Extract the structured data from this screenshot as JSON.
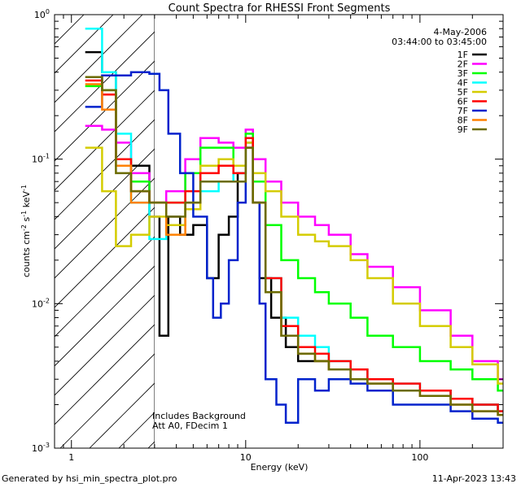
{
  "chart_data": {
    "type": "line",
    "title": "Count Spectra for RHESSI Front Segments",
    "xlabel": "Energy (keV)",
    "ylabel": "counts cm",
    "ylabel_sup1": "-2",
    "ylabel_mid": " s",
    "ylabel_sup2": "-1",
    "ylabel_end": " keV",
    "ylabel_sup3": "-1",
    "xscale": "log",
    "yscale": "log",
    "xlim": [
      0.8,
      300
    ],
    "ylim": [
      0.001,
      1
    ],
    "x_ticks": [
      {
        "value": 1,
        "label": "1"
      },
      {
        "value": 10,
        "label": "10"
      },
      {
        "value": 100,
        "label": "100"
      }
    ],
    "y_ticks": [
      {
        "value": 1,
        "label": "10",
        "sup": "0"
      },
      {
        "value": 0.1,
        "label": "10",
        "sup": "-1"
      },
      {
        "value": 0.01,
        "label": "10",
        "sup": "-2"
      },
      {
        "value": 0.001,
        "label": "10",
        "sup": "-3"
      }
    ],
    "date": "4-May-2006",
    "time_range": "03:44:00 to 03:45:00",
    "annotation_line1": "Includes Background",
    "annotation_line2": "Att A0, FDecim 1",
    "hatch_region": [
      0.8,
      3
    ],
    "legend_position": "top-right",
    "series": [
      {
        "name": "1F",
        "color": "#000000",
        "points": [
          [
            1.2,
            0.55
          ],
          [
            1.5,
            0.4
          ],
          [
            1.8,
            0.1
          ],
          [
            2.2,
            0.09
          ],
          [
            2.8,
            0.04
          ],
          [
            3.2,
            0.006
          ],
          [
            3.6,
            0.04
          ],
          [
            4.2,
            0.03
          ],
          [
            5,
            0.035
          ],
          [
            6,
            0.015
          ],
          [
            7,
            0.03
          ],
          [
            8,
            0.04
          ],
          [
            9,
            0.08
          ],
          [
            10,
            0.13
          ],
          [
            11,
            0.05
          ],
          [
            12,
            0.015
          ],
          [
            14,
            0.008
          ],
          [
            17,
            0.005
          ],
          [
            20,
            0.004
          ],
          [
            25,
            0.004
          ],
          [
            30,
            0.0035
          ],
          [
            40,
            0.003
          ],
          [
            50,
            0.003
          ],
          [
            70,
            0.0025
          ],
          [
            100,
            0.0025
          ],
          [
            150,
            0.0022
          ],
          [
            200,
            0.002
          ],
          [
            280,
            0.0018
          ]
        ]
      },
      {
        "name": "2F",
        "color": "#ff00ff",
        "points": [
          [
            1.2,
            0.17
          ],
          [
            1.5,
            0.16
          ],
          [
            1.8,
            0.13
          ],
          [
            2.2,
            0.08
          ],
          [
            2.8,
            0.05
          ],
          [
            3.5,
            0.06
          ],
          [
            4.5,
            0.1
          ],
          [
            5.5,
            0.14
          ],
          [
            7,
            0.13
          ],
          [
            8.5,
            0.12
          ],
          [
            10,
            0.16
          ],
          [
            11,
            0.1
          ],
          [
            13,
            0.07
          ],
          [
            16,
            0.05
          ],
          [
            20,
            0.04
          ],
          [
            25,
            0.035
          ],
          [
            30,
            0.03
          ],
          [
            40,
            0.022
          ],
          [
            50,
            0.018
          ],
          [
            70,
            0.013
          ],
          [
            100,
            0.009
          ],
          [
            150,
            0.006
          ],
          [
            200,
            0.004
          ],
          [
            280,
            0.003
          ]
        ]
      },
      {
        "name": "3F",
        "color": "#00ff00",
        "points": [
          [
            1.2,
            0.32
          ],
          [
            1.5,
            0.3
          ],
          [
            1.8,
            0.1
          ],
          [
            2.2,
            0.07
          ],
          [
            2.8,
            0.05
          ],
          [
            3.5,
            0.05
          ],
          [
            4.5,
            0.08
          ],
          [
            5.5,
            0.12
          ],
          [
            7,
            0.12
          ],
          [
            8.5,
            0.09
          ],
          [
            10,
            0.15
          ],
          [
            11,
            0.07
          ],
          [
            13,
            0.035
          ],
          [
            16,
            0.02
          ],
          [
            20,
            0.015
          ],
          [
            25,
            0.012
          ],
          [
            30,
            0.01
          ],
          [
            40,
            0.008
          ],
          [
            50,
            0.006
          ],
          [
            70,
            0.005
          ],
          [
            100,
            0.004
          ],
          [
            150,
            0.0035
          ],
          [
            200,
            0.003
          ],
          [
            280,
            0.0025
          ]
        ]
      },
      {
        "name": "4F",
        "color": "#00ffff",
        "points": [
          [
            1.2,
            0.8
          ],
          [
            1.5,
            0.4
          ],
          [
            1.8,
            0.15
          ],
          [
            2.2,
            0.05
          ],
          [
            2.8,
            0.028
          ],
          [
            3.5,
            0.035
          ],
          [
            4.5,
            0.05
          ],
          [
            5.5,
            0.06
          ],
          [
            7,
            0.07
          ],
          [
            8.5,
            0.08
          ],
          [
            10,
            0.13
          ],
          [
            11,
            0.05
          ],
          [
            13,
            0.015
          ],
          [
            16,
            0.008
          ],
          [
            20,
            0.006
          ],
          [
            25,
            0.005
          ],
          [
            30,
            0.004
          ],
          [
            40,
            0.0035
          ],
          [
            50,
            0.003
          ],
          [
            70,
            0.0028
          ],
          [
            100,
            0.0025
          ],
          [
            150,
            0.0022
          ],
          [
            200,
            0.002
          ],
          [
            280,
            0.0018
          ]
        ]
      },
      {
        "name": "5F",
        "color": "#d4cc00",
        "points": [
          [
            1.2,
            0.12
          ],
          [
            1.5,
            0.06
          ],
          [
            1.8,
            0.025
          ],
          [
            2.2,
            0.03
          ],
          [
            2.8,
            0.04
          ],
          [
            3.5,
            0.035
          ],
          [
            4.5,
            0.045
          ],
          [
            5.5,
            0.09
          ],
          [
            7,
            0.1
          ],
          [
            8.5,
            0.09
          ],
          [
            10,
            0.13
          ],
          [
            11,
            0.08
          ],
          [
            13,
            0.06
          ],
          [
            16,
            0.04
          ],
          [
            20,
            0.03
          ],
          [
            25,
            0.027
          ],
          [
            30,
            0.025
          ],
          [
            40,
            0.02
          ],
          [
            50,
            0.015
          ],
          [
            70,
            0.01
          ],
          [
            100,
            0.007
          ],
          [
            150,
            0.005
          ],
          [
            200,
            0.0038
          ],
          [
            280,
            0.0028
          ]
        ]
      },
      {
        "name": "6F",
        "color": "#ff0000",
        "points": [
          [
            1.2,
            0.35
          ],
          [
            1.5,
            0.28
          ],
          [
            1.8,
            0.1
          ],
          [
            2.2,
            0.06
          ],
          [
            2.8,
            0.05
          ],
          [
            3.5,
            0.05
          ],
          [
            4.5,
            0.06
          ],
          [
            5.5,
            0.08
          ],
          [
            7,
            0.09
          ],
          [
            8.5,
            0.08
          ],
          [
            10,
            0.14
          ],
          [
            11,
            0.05
          ],
          [
            13,
            0.015
          ],
          [
            16,
            0.007
          ],
          [
            20,
            0.005
          ],
          [
            25,
            0.0045
          ],
          [
            30,
            0.004
          ],
          [
            40,
            0.0035
          ],
          [
            50,
            0.003
          ],
          [
            70,
            0.0028
          ],
          [
            100,
            0.0025
          ],
          [
            150,
            0.0022
          ],
          [
            200,
            0.002
          ],
          [
            280,
            0.0018
          ]
        ]
      },
      {
        "name": "7F",
        "color": "#0022cc",
        "points": [
          [
            1.2,
            0.23
          ],
          [
            1.5,
            0.38
          ],
          [
            1.8,
            0.38
          ],
          [
            2.2,
            0.4
          ],
          [
            2.8,
            0.39
          ],
          [
            3.2,
            0.3
          ],
          [
            3.6,
            0.15
          ],
          [
            4.2,
            0.08
          ],
          [
            5,
            0.04
          ],
          [
            6,
            0.015
          ],
          [
            6.5,
            0.008
          ],
          [
            7.2,
            0.01
          ],
          [
            8,
            0.02
          ],
          [
            9,
            0.05
          ],
          [
            10,
            0.12
          ],
          [
            11,
            0.05
          ],
          [
            12,
            0.01
          ],
          [
            13,
            0.003
          ],
          [
            15,
            0.002
          ],
          [
            17,
            0.0015
          ],
          [
            20,
            0.003
          ],
          [
            25,
            0.0025
          ],
          [
            30,
            0.003
          ],
          [
            40,
            0.0028
          ],
          [
            50,
            0.0025
          ],
          [
            70,
            0.002
          ],
          [
            100,
            0.002
          ],
          [
            150,
            0.0018
          ],
          [
            200,
            0.0016
          ],
          [
            280,
            0.0015
          ]
        ]
      },
      {
        "name": "8F",
        "color": "#ff8000",
        "points": [
          [
            1.2,
            0.33
          ],
          [
            1.5,
            0.22
          ],
          [
            1.8,
            0.09
          ],
          [
            2.2,
            0.05
          ],
          [
            2.8,
            0.05
          ],
          [
            3.5,
            0.03
          ],
          [
            4.5,
            0.05
          ],
          [
            5.5,
            0.07
          ],
          [
            7,
            0.07
          ],
          [
            8.5,
            0.07
          ],
          [
            10,
            0.12
          ],
          [
            11,
            0.05
          ],
          [
            13,
            0.012
          ],
          [
            16,
            0.006
          ],
          [
            20,
            0.0045
          ],
          [
            25,
            0.004
          ],
          [
            30,
            0.0035
          ],
          [
            40,
            0.003
          ],
          [
            50,
            0.0028
          ],
          [
            70,
            0.0025
          ],
          [
            100,
            0.0023
          ],
          [
            150,
            0.002
          ],
          [
            200,
            0.0018
          ],
          [
            280,
            0.0017
          ]
        ]
      },
      {
        "name": "9F",
        "color": "#6b6b00",
        "points": [
          [
            1.2,
            0.37
          ],
          [
            1.5,
            0.3
          ],
          [
            1.8,
            0.08
          ],
          [
            2.2,
            0.06
          ],
          [
            2.8,
            0.05
          ],
          [
            3.5,
            0.04
          ],
          [
            4.5,
            0.05
          ],
          [
            5.5,
            0.07
          ],
          [
            7,
            0.07
          ],
          [
            8.5,
            0.07
          ],
          [
            10,
            0.12
          ],
          [
            11,
            0.05
          ],
          [
            13,
            0.012
          ],
          [
            16,
            0.006
          ],
          [
            20,
            0.0045
          ],
          [
            25,
            0.004
          ],
          [
            30,
            0.0035
          ],
          [
            40,
            0.003
          ],
          [
            50,
            0.0028
          ],
          [
            70,
            0.0025
          ],
          [
            100,
            0.0023
          ],
          [
            150,
            0.002
          ],
          [
            200,
            0.0018
          ],
          [
            280,
            0.0017
          ]
        ]
      }
    ]
  },
  "footer": {
    "left": "Generated by hsi_min_spectra_plot.pro",
    "right": "11-Apr-2023 13:43"
  }
}
